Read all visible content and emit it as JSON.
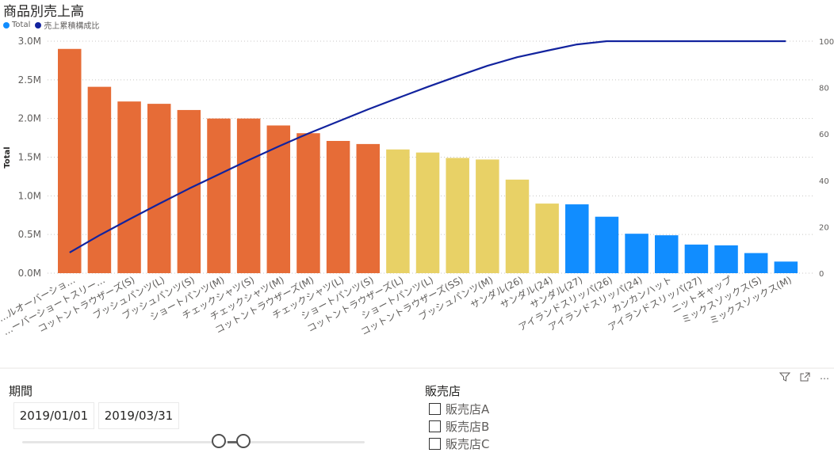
{
  "visual": {
    "title": "商品別売上高",
    "legend": [
      {
        "label": "Total",
        "color": "#118DFF"
      },
      {
        "label": "売上累積構成比",
        "color": "#12239E"
      }
    ],
    "header_icons": [
      "filter-icon",
      "focus-mode-icon",
      "more-options-icon"
    ],
    "header_glyphs": {
      "filter": "⛉",
      "focus": "⤢",
      "more": "⋯"
    }
  },
  "chart_data": {
    "type": "bar",
    "title": "商品別売上高",
    "xlabel": "",
    "ylabel": "Total",
    "ylim": [
      0,
      3000000
    ],
    "y_ticks": [
      "0.0M",
      "0.5M",
      "1.0M",
      "1.5M",
      "2.0M",
      "2.5M",
      "3.0M"
    ],
    "y2_ticks": [
      "0",
      "20",
      "40",
      "60",
      "80",
      "100"
    ],
    "y2lim": [
      0,
      100
    ],
    "grid": true,
    "legend_position": "top-left",
    "categories": [
      "…ルオーバーショ…",
      "…ーバーショートスリー…",
      "コットントラウザーズ(S)",
      "ブッシュパンツ(L)",
      "ブッシュパンツ(S)",
      "ショートパンツ(M)",
      "チェックシャツ(S)",
      "チェックシャツ(M)",
      "コットントラウザーズ(M)",
      "チェックシャツ(L)",
      "ショートパンツ(S)",
      "コットントラウザーズ(L)",
      "ショートパンツ(L)",
      "コットントラウザーズ(SS)",
      "ブッシュパンツ(M)",
      "サンダル(26)",
      "サンダル(24)",
      "サンダル(27)",
      "アイランドスリッパ(26)",
      "アイランドスリッパ(24)",
      "カンカンハット",
      "アイランドスリッパ(27)",
      "ニットキャップ",
      "ミックスソックス(S)",
      "ミックスソックス(M)"
    ],
    "series": [
      {
        "name": "Total",
        "type": "bar",
        "values": [
          2900000,
          2410000,
          2220000,
          2190000,
          2110000,
          2000000,
          2000000,
          1910000,
          1810000,
          1710000,
          1670000,
          1600000,
          1560000,
          1490000,
          1470000,
          1210000,
          900000,
          890000,
          730000,
          510000,
          490000,
          370000,
          360000,
          260000,
          150000
        ],
        "colors": [
          "#E66C37",
          "#E66C37",
          "#E66C37",
          "#E66C37",
          "#E66C37",
          "#E66C37",
          "#E66C37",
          "#E66C37",
          "#E66C37",
          "#E66C37",
          "#E66C37",
          "#E8D166",
          "#E8D166",
          "#E8D166",
          "#E8D166",
          "#E8D166",
          "#E8D166",
          "#118DFF",
          "#118DFF",
          "#118DFF",
          "#118DFF",
          "#118DFF",
          "#118DFF",
          "#118DFF",
          "#118DFF"
        ]
      },
      {
        "name": "売上累積構成比",
        "type": "line",
        "axis": "secondary",
        "color": "#12239E",
        "values": [
          8.9,
          16.3,
          23.2,
          29.9,
          36.4,
          42.6,
          48.7,
          54.6,
          60.2,
          65.4,
          70.6,
          75.5,
          80.3,
          84.9,
          89.4,
          93.1,
          95.9,
          98.6,
          100.0,
          100.0,
          100.0,
          100.0,
          100.0,
          100.0,
          100.0
        ]
      }
    ]
  },
  "slicers": {
    "period": {
      "title": "期間",
      "start": "2019/01/01",
      "end": "2019/03/31"
    },
    "store": {
      "title": "販売店",
      "options": [
        {
          "label": "販売店A",
          "checked": false
        },
        {
          "label": "販売店B",
          "checked": false
        },
        {
          "label": "販売店C",
          "checked": false
        }
      ]
    }
  }
}
